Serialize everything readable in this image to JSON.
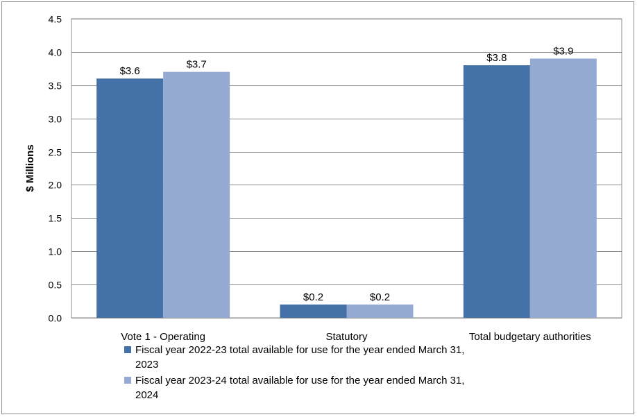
{
  "chart_data": {
    "type": "bar",
    "title": "",
    "xlabel": "",
    "ylabel": "$ Millions",
    "ylim": [
      0,
      4.5
    ],
    "yticks": [
      "0.0",
      "0.5",
      "1.0",
      "1.5",
      "2.0",
      "2.5",
      "3.0",
      "3.5",
      "4.0",
      "4.5"
    ],
    "categories": [
      "Vote 1 - Operating",
      "Statutory",
      "Total budgetary authorities"
    ],
    "series": [
      {
        "name": "Fiscal year 2022-23 total available for use for the year ended March 31, 2023",
        "name_lines": [
          "Fiscal year 2022-23 total available for use for the year ended March 31,",
          "2023"
        ],
        "values": [
          3.6,
          0.2,
          3.8
        ],
        "labels": [
          "$3.6",
          "$0.2",
          "$3.8"
        ],
        "color": "#4472a8"
      },
      {
        "name": "Fiscal year 2023-24 total available for use for the year ended March 31, 2024",
        "name_lines": [
          "Fiscal year 2023-24 total available for use for the year ended March 31,",
          "2024"
        ],
        "values": [
          3.7,
          0.2,
          3.9
        ],
        "labels": [
          "$3.7",
          "$0.2",
          "$3.9"
        ],
        "color": "#94aad2"
      }
    ],
    "grid": true,
    "legend_position": "bottom"
  }
}
